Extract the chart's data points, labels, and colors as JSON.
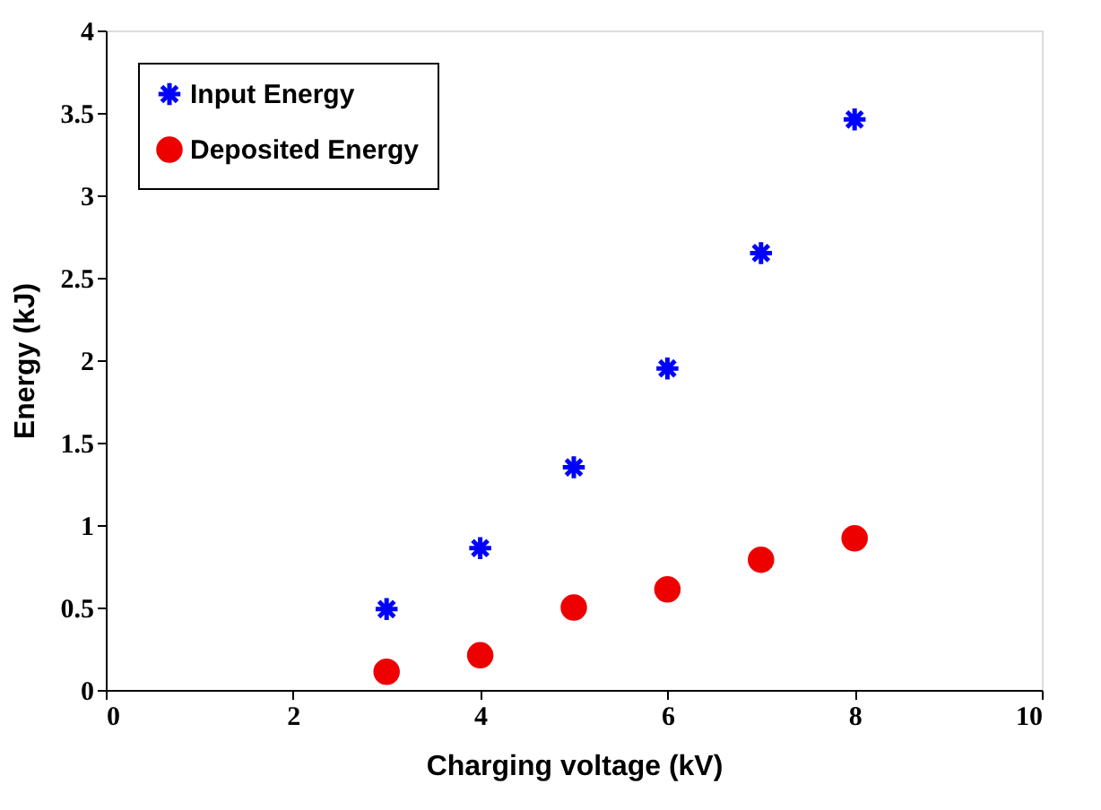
{
  "chart_data": {
    "type": "scatter",
    "xlabel": "Charging voltage (kV)",
    "ylabel": "Energy (kJ)",
    "x": [
      3,
      4,
      5,
      6,
      7,
      8
    ],
    "series": [
      {
        "name": "Input Energy",
        "color": "#0000ff",
        "marker": "cross",
        "values": [
          0.49,
          0.86,
          1.35,
          1.95,
          2.65,
          3.46
        ]
      },
      {
        "name": "Deposited Energy",
        "color": "#ee0000",
        "marker": "circle",
        "values": [
          0.11,
          0.21,
          0.5,
          0.61,
          0.79,
          0.92
        ]
      }
    ],
    "xlim": [
      0,
      10
    ],
    "xticks": [
      0,
      2,
      4,
      6,
      8,
      10
    ],
    "ylim": [
      0,
      4
    ],
    "yticks": [
      0,
      0.5,
      1,
      1.5,
      2,
      2.5,
      3,
      3.5,
      4
    ],
    "grid": false,
    "legend": "top left"
  }
}
